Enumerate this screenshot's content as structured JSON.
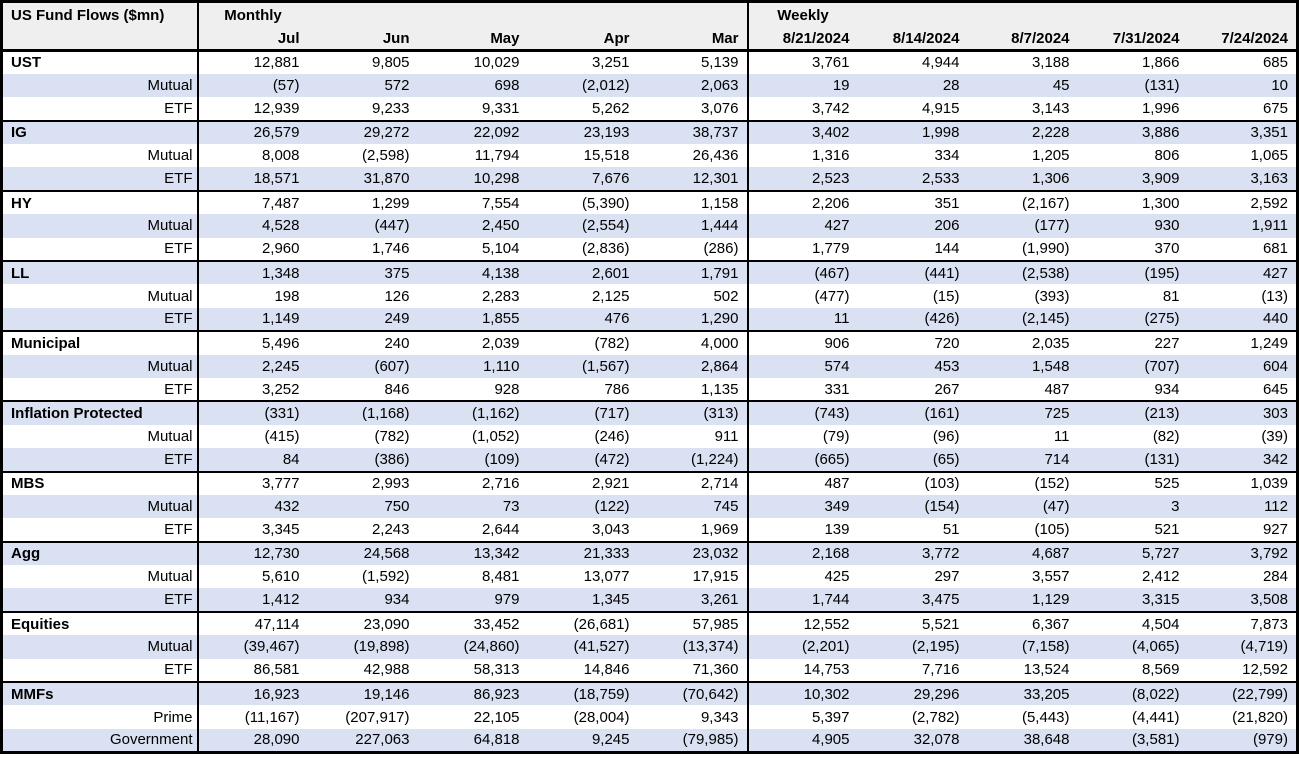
{
  "title": "US Fund Flows ($mn)",
  "sections": {
    "monthly": "Monthly",
    "weekly": "Weekly"
  },
  "columns": {
    "monthly": [
      "Jul",
      "Jun",
      "May",
      "Apr",
      "Mar"
    ],
    "weekly": [
      "8/21/2024",
      "8/14/2024",
      "8/7/2024",
      "7/31/2024",
      "7/24/2024"
    ]
  },
  "colors": {
    "stripe": "#d9e1f2",
    "header_bg": "#efefef",
    "border": "#000000"
  },
  "groups": [
    {
      "rows": [
        {
          "label": "UST",
          "monthly": [
            "12,881",
            "9,805",
            "10,029",
            "3,251",
            "5,139"
          ],
          "weekly": [
            "3,761",
            "4,944",
            "3,188",
            "1,866",
            "685"
          ]
        },
        {
          "label": "Mutual",
          "monthly": [
            "(57)",
            "572",
            "698",
            "(2,012)",
            "2,063"
          ],
          "weekly": [
            "19",
            "28",
            "45",
            "(131)",
            "10"
          ]
        },
        {
          "label": "ETF",
          "monthly": [
            "12,939",
            "9,233",
            "9,331",
            "5,262",
            "3,076"
          ],
          "weekly": [
            "3,742",
            "4,915",
            "3,143",
            "1,996",
            "675"
          ]
        }
      ]
    },
    {
      "rows": [
        {
          "label": "IG",
          "monthly": [
            "26,579",
            "29,272",
            "22,092",
            "23,193",
            "38,737"
          ],
          "weekly": [
            "3,402",
            "1,998",
            "2,228",
            "3,886",
            "3,351"
          ]
        },
        {
          "label": "Mutual",
          "monthly": [
            "8,008",
            "(2,598)",
            "11,794",
            "15,518",
            "26,436"
          ],
          "weekly": [
            "1,316",
            "334",
            "1,205",
            "806",
            "1,065"
          ]
        },
        {
          "label": "ETF",
          "monthly": [
            "18,571",
            "31,870",
            "10,298",
            "7,676",
            "12,301"
          ],
          "weekly": [
            "2,523",
            "2,533",
            "1,306",
            "3,909",
            "3,163"
          ]
        }
      ]
    },
    {
      "rows": [
        {
          "label": "HY",
          "monthly": [
            "7,487",
            "1,299",
            "7,554",
            "(5,390)",
            "1,158"
          ],
          "weekly": [
            "2,206",
            "351",
            "(2,167)",
            "1,300",
            "2,592"
          ]
        },
        {
          "label": "Mutual",
          "monthly": [
            "4,528",
            "(447)",
            "2,450",
            "(2,554)",
            "1,444"
          ],
          "weekly": [
            "427",
            "206",
            "(177)",
            "930",
            "1,911"
          ]
        },
        {
          "label": "ETF",
          "monthly": [
            "2,960",
            "1,746",
            "5,104",
            "(2,836)",
            "(286)"
          ],
          "weekly": [
            "1,779",
            "144",
            "(1,990)",
            "370",
            "681"
          ]
        }
      ]
    },
    {
      "rows": [
        {
          "label": "LL",
          "monthly": [
            "1,348",
            "375",
            "4,138",
            "2,601",
            "1,791"
          ],
          "weekly": [
            "(467)",
            "(441)",
            "(2,538)",
            "(195)",
            "427"
          ]
        },
        {
          "label": "Mutual",
          "monthly": [
            "198",
            "126",
            "2,283",
            "2,125",
            "502"
          ],
          "weekly": [
            "(477)",
            "(15)",
            "(393)",
            "81",
            "(13)"
          ]
        },
        {
          "label": "ETF",
          "monthly": [
            "1,149",
            "249",
            "1,855",
            "476",
            "1,290"
          ],
          "weekly": [
            "11",
            "(426)",
            "(2,145)",
            "(275)",
            "440"
          ]
        }
      ]
    },
    {
      "rows": [
        {
          "label": "Municipal",
          "monthly": [
            "5,496",
            "240",
            "2,039",
            "(782)",
            "4,000"
          ],
          "weekly": [
            "906",
            "720",
            "2,035",
            "227",
            "1,249"
          ]
        },
        {
          "label": "Mutual",
          "monthly": [
            "2,245",
            "(607)",
            "1,110",
            "(1,567)",
            "2,864"
          ],
          "weekly": [
            "574",
            "453",
            "1,548",
            "(707)",
            "604"
          ]
        },
        {
          "label": "ETF",
          "monthly": [
            "3,252",
            "846",
            "928",
            "786",
            "1,135"
          ],
          "weekly": [
            "331",
            "267",
            "487",
            "934",
            "645"
          ]
        }
      ]
    },
    {
      "rows": [
        {
          "label": "Inflation Protected",
          "monthly": [
            "(331)",
            "(1,168)",
            "(1,162)",
            "(717)",
            "(313)"
          ],
          "weekly": [
            "(743)",
            "(161)",
            "725",
            "(213)",
            "303"
          ]
        },
        {
          "label": "Mutual",
          "monthly": [
            "(415)",
            "(782)",
            "(1,052)",
            "(246)",
            "911"
          ],
          "weekly": [
            "(79)",
            "(96)",
            "11",
            "(82)",
            "(39)"
          ]
        },
        {
          "label": "ETF",
          "monthly": [
            "84",
            "(386)",
            "(109)",
            "(472)",
            "(1,224)"
          ],
          "weekly": [
            "(665)",
            "(65)",
            "714",
            "(131)",
            "342"
          ]
        }
      ]
    },
    {
      "rows": [
        {
          "label": "MBS",
          "monthly": [
            "3,777",
            "2,993",
            "2,716",
            "2,921",
            "2,714"
          ],
          "weekly": [
            "487",
            "(103)",
            "(152)",
            "525",
            "1,039"
          ]
        },
        {
          "label": "Mutual",
          "monthly": [
            "432",
            "750",
            "73",
            "(122)",
            "745"
          ],
          "weekly": [
            "349",
            "(154)",
            "(47)",
            "3",
            "112"
          ]
        },
        {
          "label": "ETF",
          "monthly": [
            "3,345",
            "2,243",
            "2,644",
            "3,043",
            "1,969"
          ],
          "weekly": [
            "139",
            "51",
            "(105)",
            "521",
            "927"
          ]
        }
      ]
    },
    {
      "rows": [
        {
          "label": "Agg",
          "monthly": [
            "12,730",
            "24,568",
            "13,342",
            "21,333",
            "23,032"
          ],
          "weekly": [
            "2,168",
            "3,772",
            "4,687",
            "5,727",
            "3,792"
          ]
        },
        {
          "label": "Mutual",
          "monthly": [
            "5,610",
            "(1,592)",
            "8,481",
            "13,077",
            "17,915"
          ],
          "weekly": [
            "425",
            "297",
            "3,557",
            "2,412",
            "284"
          ]
        },
        {
          "label": "ETF",
          "monthly": [
            "1,412",
            "934",
            "979",
            "1,345",
            "3,261"
          ],
          "weekly": [
            "1,744",
            "3,475",
            "1,129",
            "3,315",
            "3,508"
          ]
        }
      ]
    },
    {
      "rows": [
        {
          "label": "Equities",
          "monthly": [
            "47,114",
            "23,090",
            "33,452",
            "(26,681)",
            "57,985"
          ],
          "weekly": [
            "12,552",
            "5,521",
            "6,367",
            "4,504",
            "7,873"
          ]
        },
        {
          "label": "Mutual",
          "monthly": [
            "(39,467)",
            "(19,898)",
            "(24,860)",
            "(41,527)",
            "(13,374)"
          ],
          "weekly": [
            "(2,201)",
            "(2,195)",
            "(7,158)",
            "(4,065)",
            "(4,719)"
          ]
        },
        {
          "label": "ETF",
          "monthly": [
            "86,581",
            "42,988",
            "58,313",
            "14,846",
            "71,360"
          ],
          "weekly": [
            "14,753",
            "7,716",
            "13,524",
            "8,569",
            "12,592"
          ]
        }
      ]
    },
    {
      "rows": [
        {
          "label": "MMFs",
          "monthly": [
            "16,923",
            "19,146",
            "86,923",
            "(18,759)",
            "(70,642)"
          ],
          "weekly": [
            "10,302",
            "29,296",
            "33,205",
            "(8,022)",
            "(22,799)"
          ]
        },
        {
          "label": "Prime",
          "monthly": [
            "(11,167)",
            "(207,917)",
            "22,105",
            "(28,004)",
            "9,343"
          ],
          "weekly": [
            "5,397",
            "(2,782)",
            "(5,443)",
            "(4,441)",
            "(21,820)"
          ]
        },
        {
          "label": "Government",
          "monthly": [
            "28,090",
            "227,063",
            "64,818",
            "9,245",
            "(79,985)"
          ],
          "weekly": [
            "4,905",
            "32,078",
            "38,648",
            "(3,581)",
            "(979)"
          ]
        }
      ]
    }
  ]
}
